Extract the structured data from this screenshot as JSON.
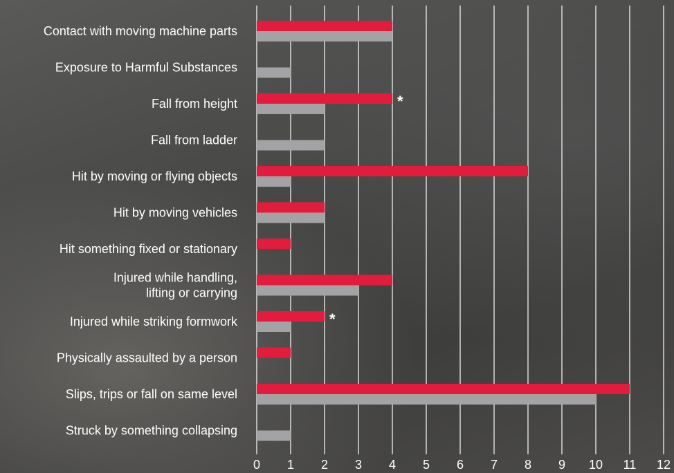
{
  "chart_data": {
    "type": "bar",
    "orientation": "horizontal",
    "title": "",
    "xlabel": "",
    "ylabel": "",
    "xlim": [
      0,
      12
    ],
    "x_ticks": [
      "0",
      "1",
      "2",
      "3",
      "4",
      "5",
      "6",
      "7",
      "8",
      "9",
      "10",
      "11",
      "12"
    ],
    "grid": true,
    "legend": "none",
    "categories": [
      [
        "Contact with moving machine parts"
      ],
      [
        "Exposure to Harmful Substances"
      ],
      [
        "Fall from height"
      ],
      [
        "Fall from ladder"
      ],
      [
        "Hit by moving or flying objects"
      ],
      [
        "Hit by moving vehicles"
      ],
      [
        "Hit something fixed or stationary"
      ],
      [
        "Injured while handling,",
        "lifting or carrying"
      ],
      [
        "Injured while striking formwork"
      ],
      [
        "Physically assaulted by a person"
      ],
      [
        "Slips, trips or fall on same level"
      ],
      [
        "Struck by something collapsing"
      ]
    ],
    "series": [
      {
        "color": "#e31c3d",
        "values": [
          4,
          0,
          4,
          0,
          8,
          2,
          1,
          4,
          2,
          1,
          11,
          0
        ]
      },
      {
        "color": "#a3a3a5",
        "values": [
          4,
          1,
          2,
          2,
          1,
          2,
          0,
          3,
          1,
          0,
          10,
          1
        ]
      }
    ],
    "annotations": [
      {
        "category_index": 2,
        "text": "*"
      },
      {
        "category_index": 8,
        "text": "*"
      }
    ]
  }
}
